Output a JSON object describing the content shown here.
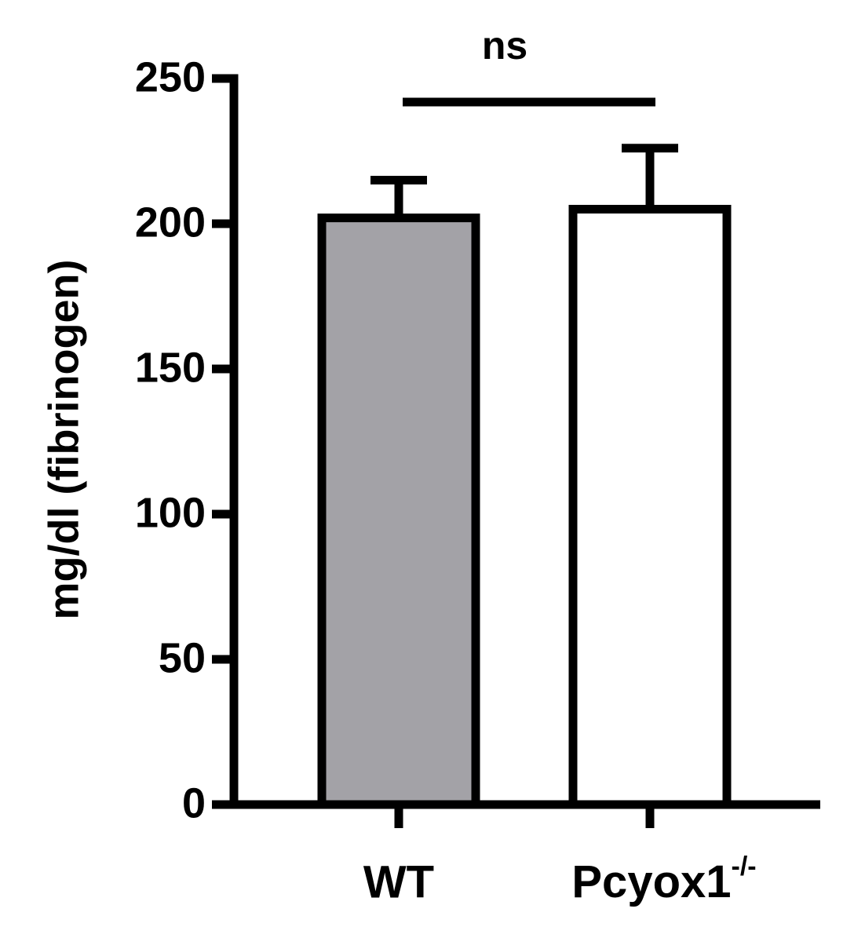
{
  "chart_data": {
    "type": "bar",
    "y_label": "mg/dl (fibrinogen)",
    "annotation": "ns",
    "categories": [
      "WT",
      "Pcyox1-/-"
    ],
    "values": [
      202,
      205
    ],
    "errors": [
      13,
      21
    ],
    "colors": [
      "#a3a2a7",
      "#ffffff"
    ],
    "ylim": [
      0,
      250
    ],
    "yticks": [
      0,
      50,
      100,
      150,
      200,
      250
    ]
  }
}
